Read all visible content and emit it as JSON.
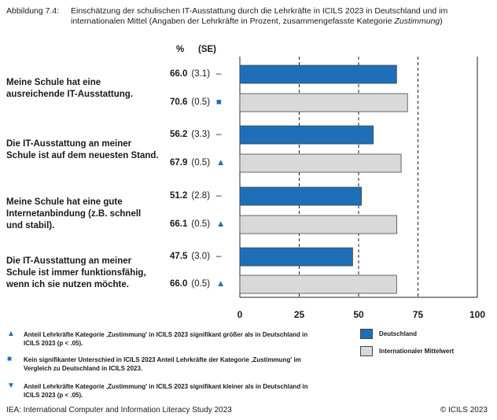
{
  "caption": {
    "label": "Abbildung 7.4:",
    "text": "Einschätzung der schulischen IT-Ausstattung durch die Lehrkräfte in ICILS 2023 in Deutschland und im internationalen Mittel (Angaben der Lehrkräfte in Prozent, zusammengefasste Kategorie ",
    "text_em": "Zustimmung",
    "text_end": ")"
  },
  "columns": {
    "pct": "%",
    "se": "(SE)"
  },
  "chart_data": {
    "type": "bar",
    "orientation": "horizontal",
    "categories": [
      "Meine Schule hat eine ausreichende IT-Ausstattung.",
      "Die IT-Ausstattung an meiner Schule ist auf dem neuesten Stand.",
      "Meine Schule hat eine gute Internetanbindung (z.B. schnell und stabil).",
      "Die IT-Ausstattung an meiner Schule ist immer funktionsfähig, wenn ich sie nutzen möchte."
    ],
    "series": [
      {
        "name": "Deutschland",
        "color": "#1e6fb8",
        "values": [
          66.0,
          56.2,
          51.2,
          47.5
        ],
        "labels": [
          "66.0",
          "56.2",
          "51.2",
          "47.5"
        ],
        "se": [
          "(3.1)",
          "(3.3)",
          "(2.8)",
          "(3.0)"
        ],
        "markers": [
          "–",
          "–",
          "–",
          "–"
        ]
      },
      {
        "name": "Internationaler Mittelwert",
        "color": "#d9d9d9",
        "values": [
          70.6,
          67.9,
          66.1,
          66.0
        ],
        "labels": [
          "70.6",
          "67.9",
          "66.1",
          "66.0"
        ],
        "se": [
          "(0.5)",
          "(0.5)",
          "(0.5)",
          "(0.5)"
        ],
        "markers": [
          "■",
          "▲",
          "▲",
          "▲"
        ]
      }
    ],
    "xlim": [
      0,
      100
    ],
    "xticks": [
      0,
      25,
      50,
      75,
      100
    ],
    "grid": "dashed vertical",
    "legend": "bottom-right"
  },
  "notes": [
    {
      "symbol": "▲",
      "text": "Anteil Lehrkräfte Kategorie ‚Zustimmung' in ICILS 2023 signifikant größer als in Deutschland in ICILS 2023 (p < .05)."
    },
    {
      "symbol": "■",
      "text": "Kein signifikanter Unterschied in ICILS 2023 Anteil Lehrkräfte der Kategorie ‚Zustimmung' im Vergleich zu Deutschland in ICILS 2023."
    },
    {
      "symbol": "▼",
      "text": "Anteil Lehrkräfte Kategorie ‚Zustimmung' in ICILS 2023 signifikant kleiner als in Deutschland in ICILS 2023 (p < .05)."
    }
  ],
  "footer": {
    "left": "IEA: International Computer and Information Literacy Study 2023",
    "right": "© ICILS 2023"
  }
}
